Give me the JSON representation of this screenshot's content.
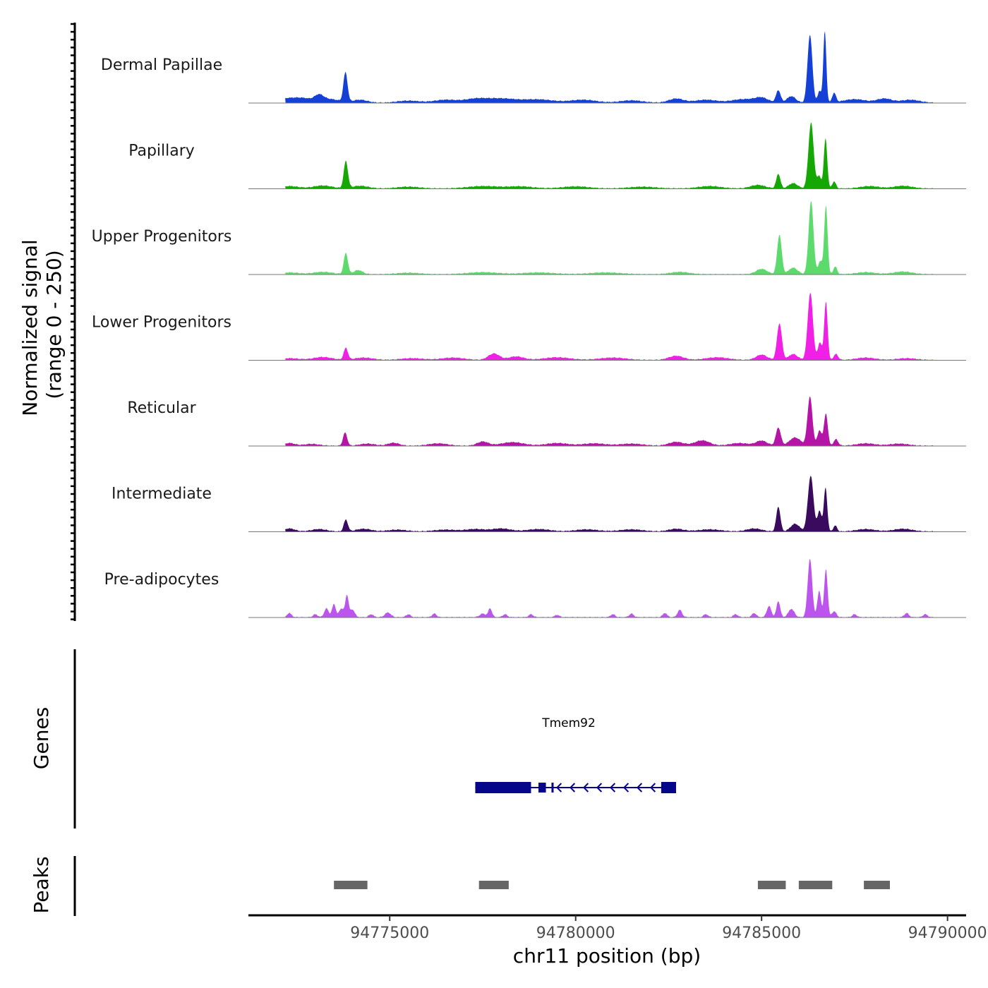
{
  "chart_data": {
    "type": "area",
    "title": "",
    "ylabel": "Normalized signal\n(range 0 - 250)",
    "ylabel_lines": [
      "Normalized signal",
      "(range 0 - 250)"
    ],
    "xlabel": "chr11 position (bp)",
    "chromosome": "chr11",
    "xlim": [
      94771200,
      94790500
    ],
    "ylim": [
      0,
      250
    ],
    "x_ticks": [
      94775000,
      94780000,
      94785000,
      94790000
    ],
    "x_tick_labels": [
      "94775000",
      "94780000",
      "94785000",
      "94790000"
    ],
    "series": [
      {
        "name": "Dermal Papillae",
        "color": "#1440D6",
        "peaks": [
          {
            "x": 94772200,
            "h": 14,
            "w": 320
          },
          {
            "x": 94772700,
            "h": 12,
            "w": 250
          },
          {
            "x": 94773100,
            "h": 20,
            "w": 120
          },
          {
            "x": 94773400,
            "h": 12,
            "w": 250
          },
          {
            "x": 94773810,
            "h": 100,
            "w": 55
          },
          {
            "x": 94774200,
            "h": 10,
            "w": 200
          },
          {
            "x": 94775500,
            "h": 7,
            "w": 300
          },
          {
            "x": 94776500,
            "h": 10,
            "w": 300
          },
          {
            "x": 94777300,
            "h": 12,
            "w": 300
          },
          {
            "x": 94778000,
            "h": 14,
            "w": 400
          },
          {
            "x": 94779000,
            "h": 11,
            "w": 400
          },
          {
            "x": 94780200,
            "h": 10,
            "w": 350
          },
          {
            "x": 94781500,
            "h": 8,
            "w": 300
          },
          {
            "x": 94782700,
            "h": 14,
            "w": 200
          },
          {
            "x": 94783500,
            "h": 10,
            "w": 300
          },
          {
            "x": 94784500,
            "h": 12,
            "w": 300
          },
          {
            "x": 94785000,
            "h": 16,
            "w": 180
          },
          {
            "x": 94785450,
            "h": 42,
            "w": 60
          },
          {
            "x": 94785800,
            "h": 22,
            "w": 120
          },
          {
            "x": 94786300,
            "h": 232,
            "w": 65
          },
          {
            "x": 94786560,
            "h": 40,
            "w": 50
          },
          {
            "x": 94786700,
            "h": 245,
            "w": 40
          },
          {
            "x": 94786950,
            "h": 32,
            "w": 50
          },
          {
            "x": 94787500,
            "h": 12,
            "w": 300
          },
          {
            "x": 94788300,
            "h": 14,
            "w": 200
          },
          {
            "x": 94789000,
            "h": 10,
            "w": 250
          }
        ]
      },
      {
        "name": "Papillary",
        "color": "#15A805",
        "peaks": [
          {
            "x": 94772300,
            "h": 8,
            "w": 250
          },
          {
            "x": 94773200,
            "h": 10,
            "w": 250
          },
          {
            "x": 94773820,
            "h": 92,
            "w": 55
          },
          {
            "x": 94774200,
            "h": 9,
            "w": 220
          },
          {
            "x": 94775500,
            "h": 6,
            "w": 300
          },
          {
            "x": 94777500,
            "h": 8,
            "w": 400
          },
          {
            "x": 94778500,
            "h": 7,
            "w": 350
          },
          {
            "x": 94780000,
            "h": 7,
            "w": 350
          },
          {
            "x": 94781800,
            "h": 6,
            "w": 350
          },
          {
            "x": 94783600,
            "h": 8,
            "w": 300
          },
          {
            "x": 94784900,
            "h": 12,
            "w": 200
          },
          {
            "x": 94785450,
            "h": 50,
            "w": 55
          },
          {
            "x": 94785850,
            "h": 18,
            "w": 120
          },
          {
            "x": 94786330,
            "h": 225,
            "w": 70
          },
          {
            "x": 94786550,
            "h": 42,
            "w": 55
          },
          {
            "x": 94786720,
            "h": 172,
            "w": 45
          },
          {
            "x": 94786950,
            "h": 24,
            "w": 50
          },
          {
            "x": 94787900,
            "h": 8,
            "w": 250
          },
          {
            "x": 94788800,
            "h": 9,
            "w": 250
          }
        ]
      },
      {
        "name": "Upper Progenitors",
        "color": "#5CDB6C",
        "peaks": [
          {
            "x": 94772300,
            "h": 6,
            "w": 250
          },
          {
            "x": 94773200,
            "h": 8,
            "w": 250
          },
          {
            "x": 94773820,
            "h": 72,
            "w": 55
          },
          {
            "x": 94774150,
            "h": 14,
            "w": 120
          },
          {
            "x": 94775500,
            "h": 5,
            "w": 300
          },
          {
            "x": 94777500,
            "h": 7,
            "w": 400
          },
          {
            "x": 94779000,
            "h": 6,
            "w": 400
          },
          {
            "x": 94780800,
            "h": 6,
            "w": 400
          },
          {
            "x": 94782800,
            "h": 8,
            "w": 250
          },
          {
            "x": 94785000,
            "h": 18,
            "w": 150
          },
          {
            "x": 94785480,
            "h": 135,
            "w": 60
          },
          {
            "x": 94785850,
            "h": 22,
            "w": 120
          },
          {
            "x": 94786330,
            "h": 250,
            "w": 65
          },
          {
            "x": 94786580,
            "h": 45,
            "w": 55
          },
          {
            "x": 94786730,
            "h": 235,
            "w": 45
          },
          {
            "x": 94786980,
            "h": 26,
            "w": 50
          },
          {
            "x": 94787800,
            "h": 7,
            "w": 250
          },
          {
            "x": 94788800,
            "h": 9,
            "w": 250
          }
        ]
      },
      {
        "name": "Lower Progenitors",
        "color": "#F020E6",
        "peaks": [
          {
            "x": 94772300,
            "h": 6,
            "w": 250
          },
          {
            "x": 94773200,
            "h": 10,
            "w": 250
          },
          {
            "x": 94773820,
            "h": 40,
            "w": 55
          },
          {
            "x": 94774300,
            "h": 8,
            "w": 250
          },
          {
            "x": 94775600,
            "h": 6,
            "w": 300
          },
          {
            "x": 94776700,
            "h": 8,
            "w": 300
          },
          {
            "x": 94777800,
            "h": 22,
            "w": 150
          },
          {
            "x": 94778400,
            "h": 12,
            "w": 200
          },
          {
            "x": 94779500,
            "h": 9,
            "w": 350
          },
          {
            "x": 94781000,
            "h": 8,
            "w": 350
          },
          {
            "x": 94782700,
            "h": 14,
            "w": 200
          },
          {
            "x": 94783800,
            "h": 9,
            "w": 300
          },
          {
            "x": 94785000,
            "h": 18,
            "w": 150
          },
          {
            "x": 94785480,
            "h": 125,
            "w": 65
          },
          {
            "x": 94785850,
            "h": 20,
            "w": 120
          },
          {
            "x": 94786310,
            "h": 230,
            "w": 70
          },
          {
            "x": 94786570,
            "h": 60,
            "w": 55
          },
          {
            "x": 94786730,
            "h": 200,
            "w": 45
          },
          {
            "x": 94787000,
            "h": 20,
            "w": 60
          },
          {
            "x": 94787800,
            "h": 8,
            "w": 250
          },
          {
            "x": 94788900,
            "h": 6,
            "w": 250
          }
        ]
      },
      {
        "name": "Reticular",
        "color": "#B515A6",
        "peaks": [
          {
            "x": 94772300,
            "h": 9,
            "w": 150
          },
          {
            "x": 94772900,
            "h": 6,
            "w": 200
          },
          {
            "x": 94773800,
            "h": 45,
            "w": 55
          },
          {
            "x": 94774400,
            "h": 7,
            "w": 200
          },
          {
            "x": 94775100,
            "h": 10,
            "w": 150
          },
          {
            "x": 94776300,
            "h": 8,
            "w": 250
          },
          {
            "x": 94777500,
            "h": 14,
            "w": 150
          },
          {
            "x": 94778300,
            "h": 12,
            "w": 300
          },
          {
            "x": 94779500,
            "h": 9,
            "w": 300
          },
          {
            "x": 94780500,
            "h": 8,
            "w": 300
          },
          {
            "x": 94781500,
            "h": 7,
            "w": 300
          },
          {
            "x": 94782700,
            "h": 13,
            "w": 200
          },
          {
            "x": 94783400,
            "h": 18,
            "w": 200
          },
          {
            "x": 94784400,
            "h": 9,
            "w": 250
          },
          {
            "x": 94785000,
            "h": 17,
            "w": 150
          },
          {
            "x": 94785450,
            "h": 62,
            "w": 65
          },
          {
            "x": 94785900,
            "h": 28,
            "w": 150
          },
          {
            "x": 94786300,
            "h": 168,
            "w": 65
          },
          {
            "x": 94786560,
            "h": 52,
            "w": 60
          },
          {
            "x": 94786730,
            "h": 110,
            "w": 50
          },
          {
            "x": 94787000,
            "h": 22,
            "w": 60
          },
          {
            "x": 94787800,
            "h": 8,
            "w": 250
          },
          {
            "x": 94788700,
            "h": 7,
            "w": 250
          }
        ]
      },
      {
        "name": "Intermediate",
        "color": "#3A0A5E",
        "peaks": [
          {
            "x": 94772300,
            "h": 10,
            "w": 150
          },
          {
            "x": 94773100,
            "h": 8,
            "w": 200
          },
          {
            "x": 94773820,
            "h": 40,
            "w": 55
          },
          {
            "x": 94774300,
            "h": 9,
            "w": 200
          },
          {
            "x": 94775200,
            "h": 6,
            "w": 250
          },
          {
            "x": 94776500,
            "h": 6,
            "w": 300
          },
          {
            "x": 94777300,
            "h": 8,
            "w": 250
          },
          {
            "x": 94778000,
            "h": 10,
            "w": 250
          },
          {
            "x": 94779000,
            "h": 8,
            "w": 300
          },
          {
            "x": 94780300,
            "h": 7,
            "w": 300
          },
          {
            "x": 94781500,
            "h": 7,
            "w": 300
          },
          {
            "x": 94782700,
            "h": 9,
            "w": 200
          },
          {
            "x": 94783600,
            "h": 7,
            "w": 300
          },
          {
            "x": 94784800,
            "h": 10,
            "w": 200
          },
          {
            "x": 94785450,
            "h": 85,
            "w": 55
          },
          {
            "x": 94785900,
            "h": 26,
            "w": 120
          },
          {
            "x": 94786320,
            "h": 190,
            "w": 75
          },
          {
            "x": 94786560,
            "h": 70,
            "w": 55
          },
          {
            "x": 94786720,
            "h": 150,
            "w": 45
          },
          {
            "x": 94786980,
            "h": 20,
            "w": 50
          },
          {
            "x": 94787800,
            "h": 8,
            "w": 250
          },
          {
            "x": 94788800,
            "h": 9,
            "w": 250
          }
        ]
      },
      {
        "name": "Pre-adipocytes",
        "color": "#BC55EE",
        "peaks": [
          {
            "x": 94772300,
            "h": 14,
            "w": 60
          },
          {
            "x": 94773000,
            "h": 10,
            "w": 60
          },
          {
            "x": 94773300,
            "h": 30,
            "w": 60
          },
          {
            "x": 94773500,
            "h": 45,
            "w": 50
          },
          {
            "x": 94773700,
            "h": 30,
            "w": 60
          },
          {
            "x": 94773850,
            "h": 75,
            "w": 45
          },
          {
            "x": 94774000,
            "h": 26,
            "w": 60
          },
          {
            "x": 94774500,
            "h": 10,
            "w": 60
          },
          {
            "x": 94774950,
            "h": 16,
            "w": 80
          },
          {
            "x": 94775500,
            "h": 10,
            "w": 60
          },
          {
            "x": 94776200,
            "h": 12,
            "w": 60
          },
          {
            "x": 94777500,
            "h": 12,
            "w": 80
          },
          {
            "x": 94777700,
            "h": 30,
            "w": 50
          },
          {
            "x": 94778100,
            "h": 10,
            "w": 60
          },
          {
            "x": 94778800,
            "h": 10,
            "w": 60
          },
          {
            "x": 94779500,
            "h": 8,
            "w": 60
          },
          {
            "x": 94781000,
            "h": 10,
            "w": 60
          },
          {
            "x": 94781500,
            "h": 12,
            "w": 60
          },
          {
            "x": 94782400,
            "h": 14,
            "w": 60
          },
          {
            "x": 94782800,
            "h": 25,
            "w": 60
          },
          {
            "x": 94783500,
            "h": 10,
            "w": 60
          },
          {
            "x": 94784300,
            "h": 10,
            "w": 60
          },
          {
            "x": 94784800,
            "h": 14,
            "w": 60
          },
          {
            "x": 94785200,
            "h": 38,
            "w": 60
          },
          {
            "x": 94785450,
            "h": 55,
            "w": 50
          },
          {
            "x": 94785800,
            "h": 28,
            "w": 80
          },
          {
            "x": 94786300,
            "h": 200,
            "w": 60
          },
          {
            "x": 94786550,
            "h": 90,
            "w": 50
          },
          {
            "x": 94786730,
            "h": 165,
            "w": 45
          },
          {
            "x": 94786950,
            "h": 20,
            "w": 60
          },
          {
            "x": 94787500,
            "h": 10,
            "w": 60
          },
          {
            "x": 94788900,
            "h": 14,
            "w": 60
          },
          {
            "x": 94789400,
            "h": 10,
            "w": 60
          }
        ]
      }
    ],
    "genes_track": {
      "label": "Genes",
      "genes": [
        {
          "name": "Tmem92",
          "strand": "-",
          "start": 94777300,
          "end": 94782700,
          "color": "#06068A",
          "exons": [
            {
              "start": 94777300,
              "end": 94778800
            },
            {
              "start": 94779000,
              "end": 94779200
            },
            {
              "start": 94779350,
              "end": 94779400
            },
            {
              "start": 94782300,
              "end": 94782700
            }
          ]
        }
      ]
    },
    "peaks_track": {
      "label": "Peaks",
      "color": "#666666",
      "regions": [
        {
          "start": 94773500,
          "end": 94774400
        },
        {
          "start": 94777400,
          "end": 94778200
        },
        {
          "start": 94784900,
          "end": 94785650
        },
        {
          "start": 94786000,
          "end": 94786900
        },
        {
          "start": 94787750,
          "end": 94788450
        }
      ]
    }
  }
}
